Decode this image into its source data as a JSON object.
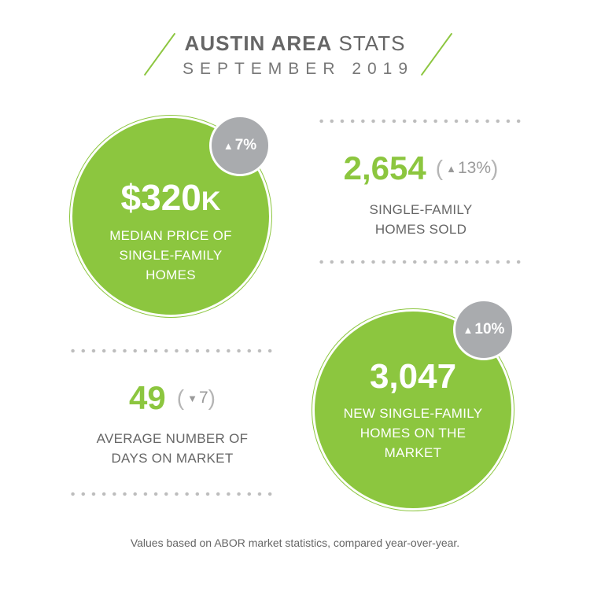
{
  "header": {
    "title_bold": "AUSTIN AREA",
    "title_light": "STATS",
    "subtitle": "SEPTEMBER 2019"
  },
  "stats": {
    "median_price": {
      "value": "$320",
      "suffix": "K",
      "change": "7%",
      "direction": "up",
      "label_lines": [
        "MEDIAN PRICE OF",
        "SINGLE-FAMILY",
        "HOMES"
      ]
    },
    "homes_sold": {
      "value": "2,654",
      "change": "13%",
      "direction": "up",
      "label_lines": [
        "SINGLE-FAMILY",
        "HOMES SOLD"
      ]
    },
    "days_on_market": {
      "value": "49",
      "change": "7",
      "direction": "down",
      "label_lines": [
        "AVERAGE NUMBER OF",
        "DAYS ON MARKET"
      ]
    },
    "new_listings": {
      "value": "3,047",
      "change": "10%",
      "direction": "up",
      "label_lines": [
        "NEW SINGLE-FAMILY",
        "HOMES ON THE",
        "MARKET"
      ]
    }
  },
  "footer": "Values based on ABOR market statistics, compared year-over-year.",
  "colors": {
    "accent": "#8cc63f",
    "badge": "#a9abae",
    "text": "#666666"
  },
  "icons": {
    "up": "arrow-up-icon",
    "down": "arrow-down-icon"
  }
}
